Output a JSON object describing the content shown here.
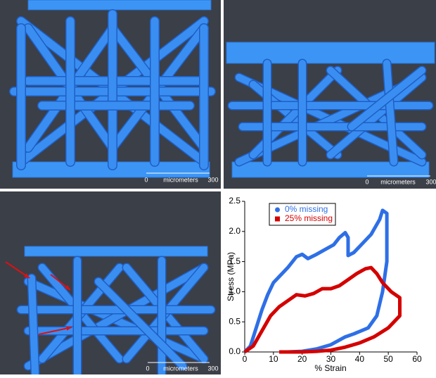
{
  "panels": [
    {
      "scale_bar": {
        "start": 0,
        "label": "micrometers",
        "end": 300
      }
    },
    {
      "scale_bar": {
        "start": 0,
        "label": "micrometers",
        "end": 300
      }
    },
    {
      "scale_bar": {
        "start": 0,
        "label": "micrometers",
        "end": 300
      }
    }
  ],
  "chart_data": {
    "type": "line",
    "x_label": "% Strain",
    "y_label": "Stress (MPa)",
    "xlim": [
      0,
      60
    ],
    "xticks": [
      0,
      10,
      20,
      30,
      40,
      50,
      60
    ],
    "ylim": [
      0,
      2.5
    ],
    "yticks": [
      {
        "value": 0,
        "label": "0.0"
      },
      0.5,
      {
        "value": 1,
        "label": "1.0"
      },
      1.5,
      {
        "value": 2,
        "label": "2.0"
      },
      2.5
    ],
    "legend": "upper left",
    "series": [
      {
        "name": "0% missing",
        "color": "#2e6fe6",
        "marker": "circle",
        "x": [
          0,
          2,
          4,
          6,
          8,
          10,
          12,
          15,
          18,
          20,
          22,
          25,
          28,
          31,
          33,
          35,
          36,
          36,
          36,
          38,
          41,
          44,
          47,
          48,
          49.5,
          49.5,
          48,
          46,
          43,
          38,
          35,
          30,
          25,
          20,
          15
        ],
        "values": [
          0,
          0.1,
          0.4,
          0.7,
          0.95,
          1.15,
          1.25,
          1.4,
          1.58,
          1.62,
          1.55,
          1.62,
          1.7,
          1.78,
          1.9,
          1.98,
          1.9,
          1.7,
          1.6,
          1.65,
          1.8,
          1.95,
          2.2,
          2.35,
          2.3,
          1.5,
          1.0,
          0.6,
          0.4,
          0.3,
          0.25,
          0.12,
          0.05,
          0.01,
          0
        ]
      },
      {
        "name": "25% missing",
        "color": "#d40000",
        "marker": "square",
        "x": [
          0,
          3,
          6,
          9,
          12,
          15,
          18,
          21,
          24,
          27,
          30,
          33,
          36,
          39,
          42,
          44,
          46,
          48,
          51,
          54,
          54,
          50,
          45,
          40,
          35,
          30,
          25,
          20,
          12
        ],
        "values": [
          0,
          0.1,
          0.35,
          0.6,
          0.75,
          0.85,
          0.95,
          0.93,
          0.97,
          1.05,
          1.05,
          1.1,
          1.2,
          1.3,
          1.38,
          1.4,
          1.3,
          1.15,
          1.0,
          0.9,
          0.6,
          0.4,
          0.25,
          0.15,
          0.08,
          0.03,
          0.01,
          0,
          0
        ]
      }
    ]
  }
}
